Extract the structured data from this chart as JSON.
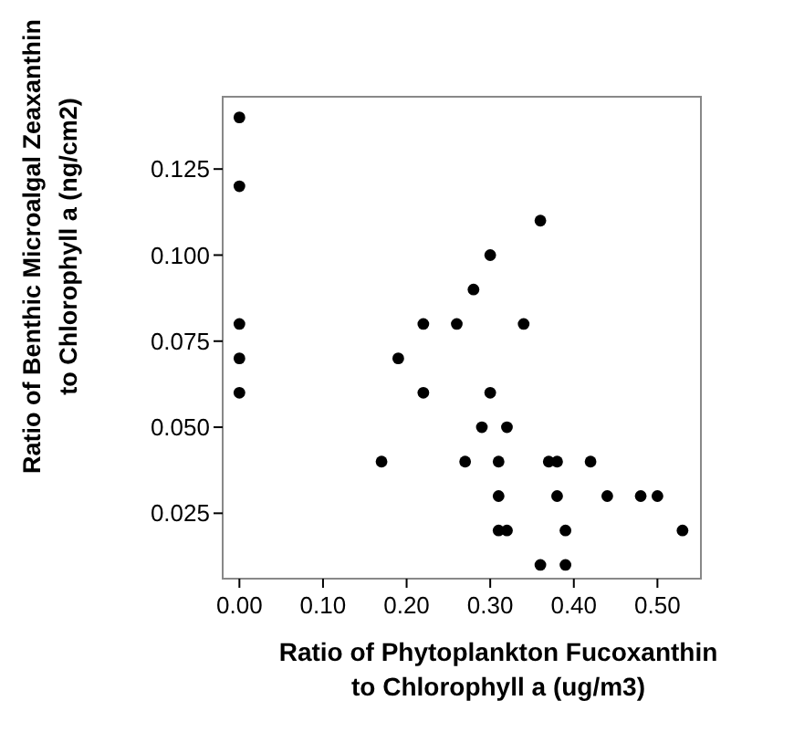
{
  "chart_data": {
    "type": "scatter",
    "xlabel": "Ratio of Phytoplankton Fucoxanthin\nto Chlorophyll a (ug/m3)",
    "ylabel": "Ratio of Benthic Microalgal Zeaxanthin\nto Chlorophyll a (ng/cm2)",
    "x": [
      0,
      0,
      0,
      0,
      0,
      0.17,
      0.19,
      0.22,
      0.22,
      0.26,
      0.27,
      0.28,
      0.29,
      0.3,
      0.3,
      0.31,
      0.31,
      0.31,
      0.32,
      0.32,
      0.34,
      0.36,
      0.36,
      0.37,
      0.38,
      0.38,
      0.39,
      0.39,
      0.42,
      0.44,
      0.48,
      0.5,
      0.53
    ],
    "values": [
      0.14,
      0.12,
      0.08,
      0.07,
      0.06,
      0.04,
      0.07,
      0.08,
      0.06,
      0.08,
      0.04,
      0.09,
      0.05,
      0.1,
      0.06,
      0.04,
      0.03,
      0.02,
      0.05,
      0.02,
      0.08,
      0.11,
      0.01,
      0.04,
      0.04,
      0.03,
      0.02,
      0.01,
      0.04,
      0.03,
      0.03,
      0.03,
      0.02
    ],
    "color": "#000000",
    "marker": "circle",
    "xlim": [
      -0.02,
      0.552
    ],
    "ylim": [
      0.006,
      0.146
    ],
    "xticks": [
      {
        "value": 0,
        "label": "0.00"
      },
      {
        "value": 0.1,
        "label": "0.10"
      },
      {
        "value": 0.2,
        "label": "0.20"
      },
      {
        "value": 0.3,
        "label": "0.30"
      },
      {
        "value": 0.4,
        "label": "0.40"
      },
      {
        "value": 0.5,
        "label": "0.50"
      }
    ],
    "yticks": [
      0.025,
      {
        "value": 0.05,
        "label": "0.050"
      },
      {
        "value": 0.075,
        "label": "0.075"
      },
      {
        "value": 0.1,
        "label": "0.100"
      },
      0.125
    ],
    "grid": false
  }
}
